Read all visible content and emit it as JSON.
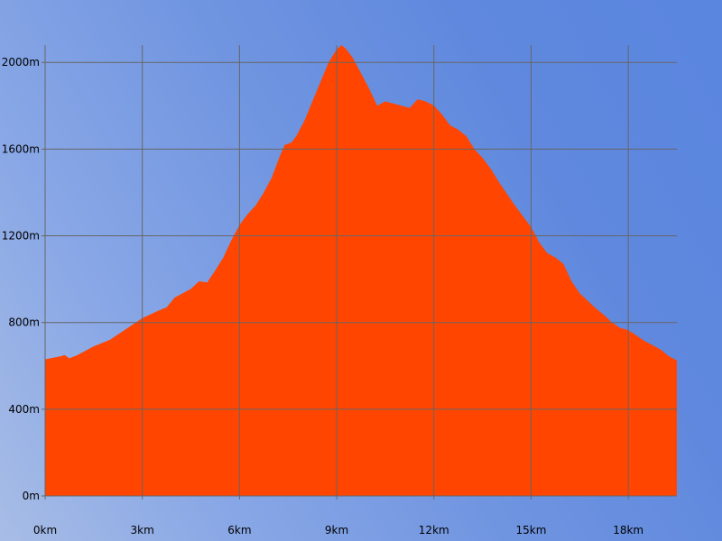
{
  "chart_data": {
    "type": "area",
    "title": "",
    "xlabel": "",
    "ylabel": "",
    "x_unit": "km",
    "y_unit": "m",
    "xlim": [
      0,
      19.5
    ],
    "ylim": [
      0,
      2080
    ],
    "x_ticks": [
      {
        "value": 0,
        "label": "0km"
      },
      {
        "value": 3,
        "label": "3km"
      },
      {
        "value": 6,
        "label": "6km"
      },
      {
        "value": 9,
        "label": "9km"
      },
      {
        "value": 12,
        "label": "12km"
      },
      {
        "value": 15,
        "label": "15km"
      },
      {
        "value": 18,
        "label": "18km"
      }
    ],
    "y_ticks": [
      {
        "value": 0,
        "label": "0m"
      },
      {
        "value": 400,
        "label": "400m"
      },
      {
        "value": 800,
        "label": "800m"
      },
      {
        "value": 1200,
        "label": "1200m"
      },
      {
        "value": 1600,
        "label": "1600m"
      },
      {
        "value": 2000,
        "label": "2000m"
      }
    ],
    "grid": true,
    "colors": {
      "fill": "#ff4500",
      "grid": "#666666",
      "plot_border": "#666666"
    },
    "series": [
      {
        "x": [
          0,
          0.5,
          0.6,
          0.75,
          1.0,
          1.5,
          2.0,
          2.5,
          3.0,
          3.5,
          3.75,
          4.0,
          4.5,
          4.75,
          5.0,
          5.25,
          5.5,
          5.75,
          6.0,
          6.25,
          6.5,
          6.75,
          7.0,
          7.25,
          7.4,
          7.6,
          7.75,
          8.0,
          8.25,
          8.5,
          8.75,
          9.0,
          9.15,
          9.3,
          9.5,
          9.75,
          10.0,
          10.25,
          10.5,
          10.75,
          11.0,
          11.25,
          11.5,
          11.75,
          12.0,
          12.25,
          12.5,
          12.75,
          13.0,
          13.25,
          13.5,
          13.75,
          14.0,
          14.5,
          15.0,
          15.25,
          15.5,
          15.75,
          16.0,
          16.25,
          16.5,
          16.75,
          17.0,
          17.25,
          17.5,
          17.75,
          18.0,
          18.25,
          18.5,
          18.75,
          19.0,
          19.25,
          19.5
        ],
        "y": [
          630,
          645,
          650,
          635,
          650,
          690,
          720,
          770,
          820,
          855,
          870,
          915,
          955,
          990,
          985,
          1040,
          1100,
          1180,
          1250,
          1300,
          1340,
          1400,
          1470,
          1570,
          1620,
          1630,
          1660,
          1730,
          1820,
          1910,
          2000,
          2060,
          2080,
          2060,
          2020,
          1950,
          1880,
          1800,
          1820,
          1810,
          1800,
          1790,
          1830,
          1820,
          1800,
          1760,
          1710,
          1690,
          1660,
          1600,
          1560,
          1510,
          1450,
          1340,
          1240,
          1170,
          1120,
          1100,
          1070,
          990,
          935,
          900,
          865,
          835,
          800,
          775,
          765,
          740,
          715,
          695,
          675,
          645,
          625
        ]
      }
    ]
  }
}
